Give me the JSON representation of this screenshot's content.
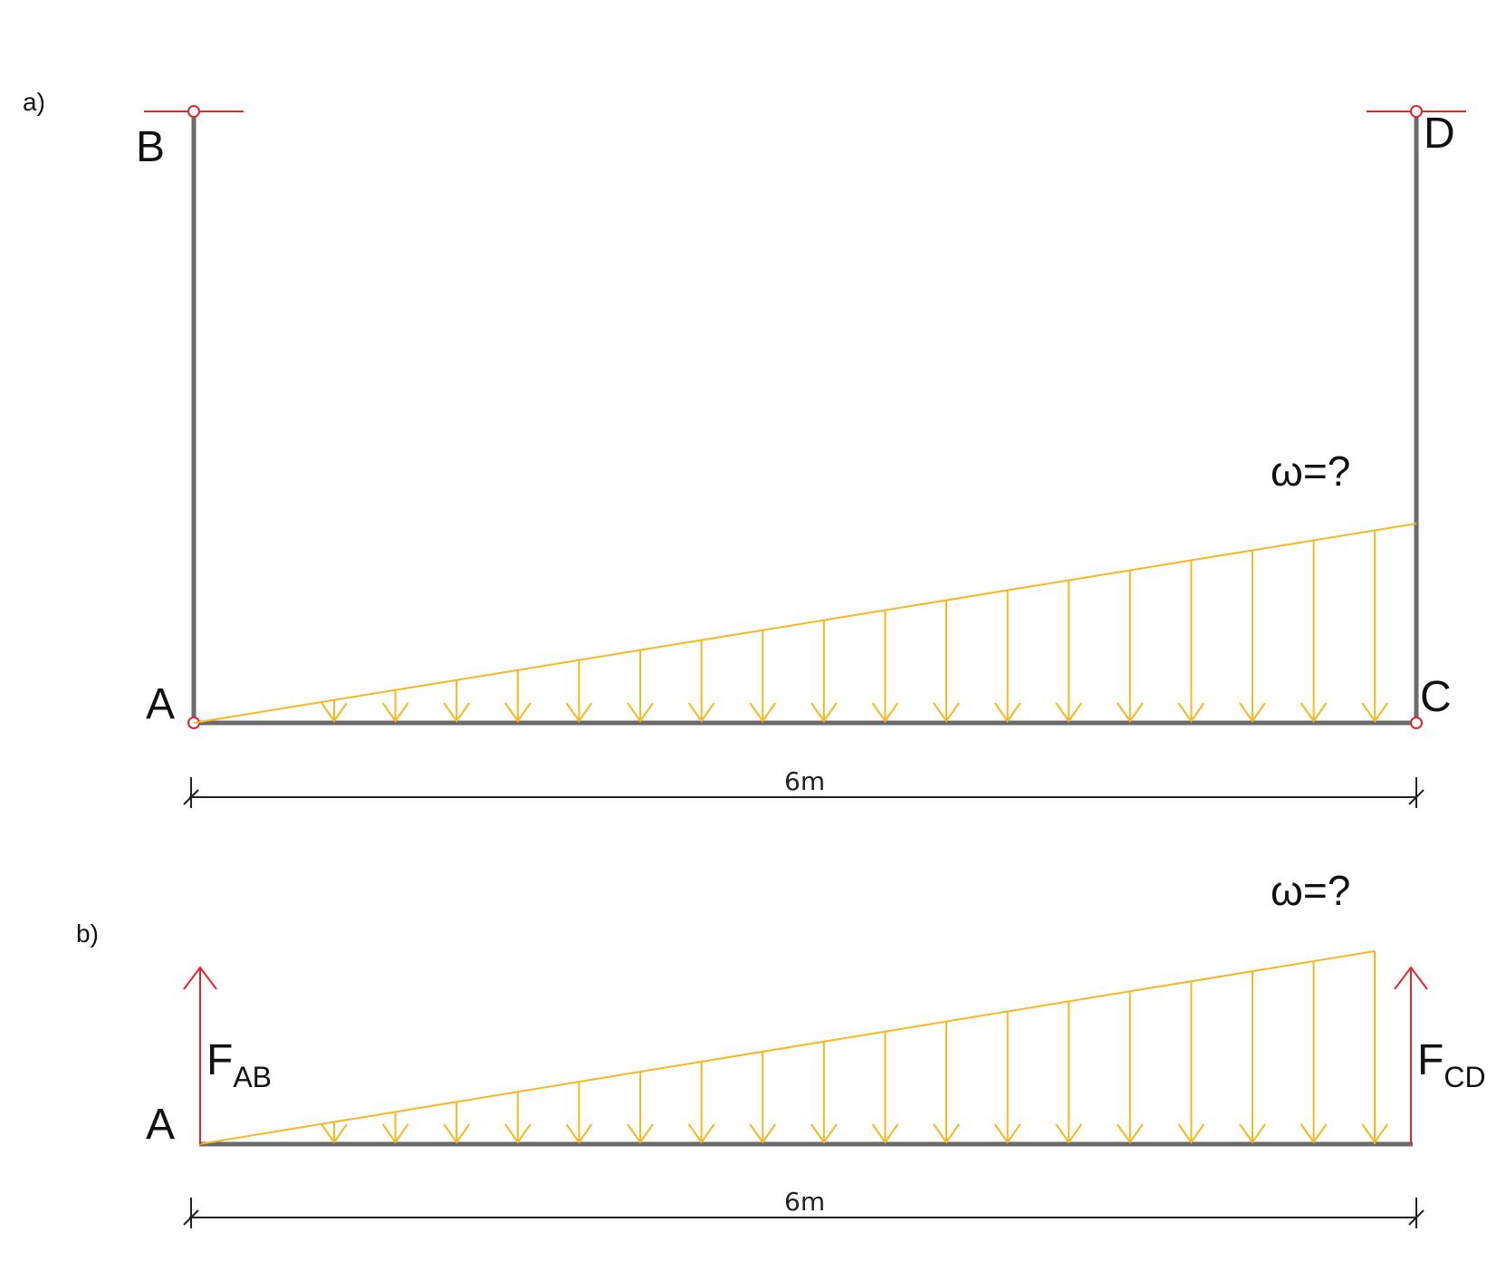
{
  "part_a": {
    "label": "a)",
    "points": {
      "A": "A",
      "B": "B",
      "C": "C",
      "D": "D"
    },
    "load_label": "ω=?",
    "span_label": "6m"
  },
  "part_b": {
    "label": "b)",
    "point_A": "A",
    "load_label": "ω=?",
    "span_label": "6m",
    "force_left": {
      "main": "F",
      "sub": "AB"
    },
    "force_right": {
      "main": "F",
      "sub": "CD"
    }
  },
  "colors": {
    "member": "#6b6b6b",
    "support": "#e0262c",
    "load": "#f5b820",
    "dimension": "#222222",
    "force": "#e0262c"
  },
  "load": {
    "distribution": "triangular",
    "arrow_count": 18
  }
}
